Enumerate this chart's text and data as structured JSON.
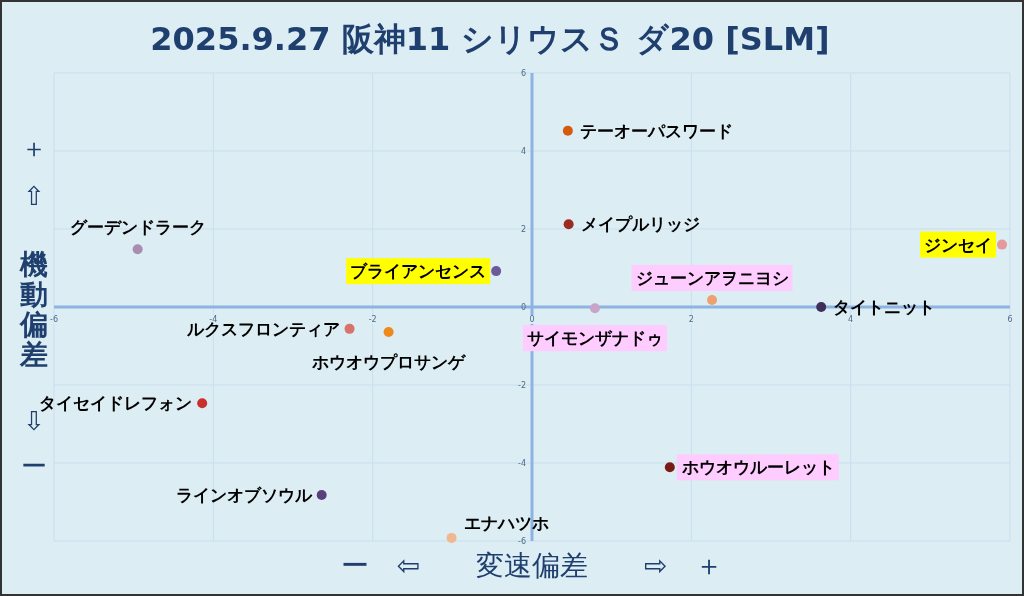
{
  "chart_data": {
    "type": "scatter",
    "title": "2025.9.27 阪神11 シリウスＳ ダ20 [SLM]",
    "xlabel": "ー　⇦　　変速偏差　　⇨　＋",
    "ylabel": "＋ ⇧ 機動偏差 ⇩ ー",
    "xlim": [
      -6,
      6
    ],
    "ylim": [
      -6,
      6
    ],
    "xticks": [
      -6,
      -4,
      -2,
      0,
      2,
      4,
      6
    ],
    "yticks": [
      -6,
      -4,
      -2,
      0,
      2,
      4,
      6
    ],
    "grid": true,
    "marker": "circle",
    "series": [
      {
        "name": "テーオーパスワード",
        "color": "#d55a0c",
        "x": [
          0.45
        ],
        "values": [
          4.52
        ]
      },
      {
        "name": "メイプルリッジ",
        "color": "#9b2a22",
        "x": [
          0.46
        ],
        "values": [
          2.12
        ]
      },
      {
        "name": "グーデンドラーク",
        "color": "#a98cb0",
        "x": [
          -4.95
        ],
        "values": [
          1.48
        ]
      },
      {
        "name": "ブライアンセンス",
        "color": "#6a5a9a",
        "x": [
          -0.45
        ],
        "values": [
          0.92
        ]
      },
      {
        "name": "ジンセイ",
        "color": "#e49a9a",
        "x": [
          5.9
        ],
        "values": [
          1.6
        ]
      },
      {
        "name": "ジューンアヲニヨシ",
        "color": "#eda070",
        "x": [
          2.26
        ],
        "values": [
          0.18
        ]
      },
      {
        "name": "タイトニット",
        "color": "#3e2f5b",
        "x": [
          3.63
        ],
        "values": [
          0
        ]
      },
      {
        "name": "サイモンザナドゥ",
        "color": "#c9a4c9",
        "x": [
          0.79
        ],
        "values": [
          -0.03
        ]
      },
      {
        "name": "ルクスフロンティア",
        "color": "#d6736b",
        "x": [
          -2.29
        ],
        "values": [
          -0.56
        ]
      },
      {
        "name": "ホウオウプロサンゲ",
        "color": "#ee8a1c",
        "x": [
          -1.8
        ],
        "values": [
          -0.64
        ]
      },
      {
        "name": "タイセイドレフォン",
        "color": "#c8322c",
        "x": [
          -4.14
        ],
        "values": [
          -2.47
        ]
      },
      {
        "name": "ホウオウルーレット",
        "color": "#7a1a14",
        "x": [
          1.73
        ],
        "values": [
          -4.11
        ]
      },
      {
        "name": "ラインオブソウル",
        "color": "#5b3f7a",
        "x": [
          -2.64
        ],
        "values": [
          -4.82
        ]
      },
      {
        "name": "エナハツホ",
        "color": "#f0b890",
        "x": [
          -1.01
        ],
        "values": [
          -5.92
        ]
      }
    ]
  }
}
